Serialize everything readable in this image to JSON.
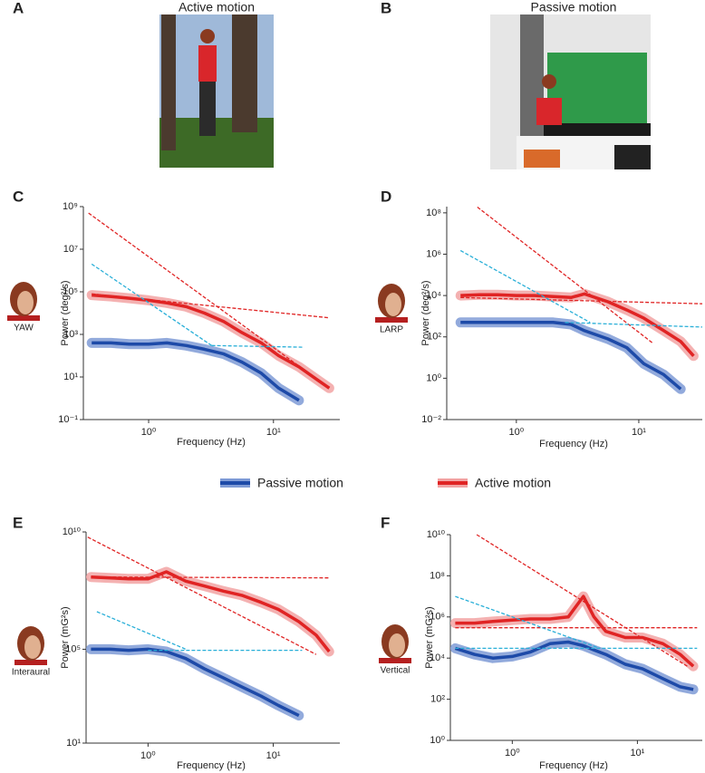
{
  "images": [
    {
      "letter": "A",
      "title": "Active motion"
    },
    {
      "letter": "B",
      "title": "Passive motion"
    }
  ],
  "chart_data": [
    {
      "type": "line",
      "panel": "C",
      "icon_label": "YAW",
      "x_label": "Frequency (Hz)",
      "y_label": "Power (deg²/s)",
      "xscale": "log",
      "yscale": "log",
      "xlim": [
        0.3,
        34
      ],
      "ylim": [
        0.1,
        1000000000
      ],
      "xticks": [
        {
          "value": 1,
          "label": "10⁰"
        },
        {
          "value": 10,
          "label": "10¹"
        }
      ],
      "yticks": [
        {
          "value": 0.1,
          "label": "10⁻¹"
        },
        {
          "value": 10,
          "label": "10¹"
        },
        {
          "value": 1000,
          "label": "10³"
        },
        {
          "value": 100000,
          "label": "10⁵"
        },
        {
          "value": 10000000,
          "label": "10⁷"
        },
        {
          "value": 1000000000,
          "label": "10⁹"
        }
      ],
      "x": [
        0.35,
        0.5,
        0.7,
        1,
        1.4,
        2,
        2.8,
        4,
        5.6,
        8,
        11,
        16,
        22,
        28
      ],
      "series": [
        {
          "name": "Passive motion",
          "color": "#1d4aa8",
          "band_color": "#7f9bd6",
          "values": [
            400,
            400,
            350,
            350,
            400,
            300,
            200,
            120,
            50,
            15,
            3,
            0.8,
            null,
            null
          ]
        },
        {
          "name": "Active motion",
          "color": "#e02424",
          "band_color": "#f2a3a3",
          "values": [
            70000,
            60000,
            50000,
            40000,
            30000,
            20000,
            10000,
            4000,
            1200,
            400,
            100,
            30,
            8,
            3
          ]
        }
      ],
      "fits": [
        {
          "color": "#e02424",
          "x": [
            0.33,
            28
          ],
          "values": [
            500000000,
            3
          ]
        },
        {
          "color": "#e02424",
          "x": [
            0.35,
            28
          ],
          "values": [
            80000,
            6000
          ]
        },
        {
          "color": "#29afd8",
          "x": [
            0.35,
            3.2
          ],
          "values": [
            2000000,
            300
          ]
        },
        {
          "color": "#29afd8",
          "x": [
            3.2,
            17
          ],
          "values": [
            300,
            250
          ]
        }
      ]
    },
    {
      "type": "line",
      "panel": "D",
      "icon_label": "LARP",
      "x_label": "Frequency (Hz)",
      "y_label": "Power (deg²/s)",
      "xscale": "log",
      "yscale": "log",
      "xlim": [
        0.27,
        33
      ],
      "ylim": [
        0.01,
        200000000
      ],
      "xticks": [
        {
          "value": 1,
          "label": "10⁰"
        },
        {
          "value": 10,
          "label": "10¹"
        }
      ],
      "yticks": [
        {
          "value": 0.01,
          "label": "10⁻²"
        },
        {
          "value": 1,
          "label": "10⁰"
        },
        {
          "value": 100,
          "label": "10²"
        },
        {
          "value": 10000,
          "label": "10⁴"
        },
        {
          "value": 1000000,
          "label": "10⁶"
        },
        {
          "value": 100000000,
          "label": "10⁸"
        }
      ],
      "x": [
        0.35,
        0.5,
        0.7,
        1,
        1.4,
        2,
        2.8,
        3.6,
        5.6,
        8,
        11,
        16,
        22,
        28
      ],
      "series": [
        {
          "name": "Passive motion",
          "color": "#1d4aa8",
          "band_color": "#7f9bd6",
          "values": [
            500,
            500,
            500,
            500,
            500,
            500,
            400,
            200,
            80,
            30,
            5,
            1.5,
            0.3,
            null
          ]
        },
        {
          "name": "Active motion",
          "color": "#e02424",
          "band_color": "#f2a3a3",
          "values": [
            10000,
            11000,
            11000,
            10000,
            10000,
            9000,
            8000,
            12000,
            5000,
            2000,
            800,
            200,
            60,
            12
          ]
        }
      ],
      "fits": [
        {
          "color": "#e02424",
          "x": [
            0.48,
            13
          ],
          "values": [
            190000000,
            50
          ]
        },
        {
          "color": "#e02424",
          "x": [
            0.35,
            33
          ],
          "values": [
            8000,
            4000
          ]
        },
        {
          "color": "#29afd8",
          "x": [
            0.35,
            4
          ],
          "values": [
            1500000,
            500
          ]
        },
        {
          "color": "#29afd8",
          "x": [
            2.5,
            33
          ],
          "values": [
            500,
            300
          ]
        }
      ]
    },
    {
      "type": "line",
      "panel": "E",
      "icon_label": "Interaural",
      "x_label": "Frequency (Hz)",
      "y_label": "Power (mG²s)",
      "xscale": "log",
      "yscale": "log",
      "xlim": [
        0.32,
        34
      ],
      "ylim": [
        10,
        10000000000
      ],
      "xticks": [
        {
          "value": 1,
          "label": "10⁰"
        },
        {
          "value": 10,
          "label": "10¹"
        }
      ],
      "yticks": [
        {
          "value": 10,
          "label": "10¹"
        },
        {
          "value": 100000,
          "label": "10⁵"
        },
        {
          "value": 10000000000,
          "label": "10¹⁰"
        }
      ],
      "x": [
        0.35,
        0.5,
        0.7,
        1,
        1.4,
        2,
        2.8,
        4,
        5.6,
        8,
        11,
        16,
        22,
        28
      ],
      "series": [
        {
          "name": "Passive motion",
          "color": "#1d4aa8",
          "band_color": "#7f9bd6",
          "values": [
            100000,
            100000,
            90000,
            100000,
            80000,
            40000,
            15000,
            6000,
            2500,
            1000,
            400,
            150,
            null,
            null
          ]
        },
        {
          "name": "Active motion",
          "color": "#e02424",
          "band_color": "#f2a3a3",
          "values": [
            120000000,
            110000000,
            100000000,
            100000000,
            200000000,
            80000000,
            50000000,
            30000000,
            20000000,
            10000000,
            5000000,
            1500000,
            400000,
            80000
          ]
        },
        {
          "name": null,
          "color": null,
          "band_color": null,
          "values": null
        }
      ],
      "fits": [
        {
          "color": "#e02424",
          "x": [
            0.33,
            22
          ],
          "values": [
            6000000000,
            60000
          ]
        },
        {
          "color": "#e02424",
          "x": [
            0.35,
            28
          ],
          "values": [
            120000000,
            110000000
          ]
        },
        {
          "color": "#29afd8",
          "x": [
            0.39,
            2
          ],
          "values": [
            4000000,
            100000
          ]
        },
        {
          "color": "#29afd8",
          "x": [
            1,
            17
          ],
          "values": [
            90000,
            90000
          ]
        }
      ]
    },
    {
      "type": "line",
      "panel": "F",
      "icon_label": "Vertical",
      "x_label": "Frequency (Hz)",
      "y_label": "Power (mG²s)",
      "xscale": "log",
      "yscale": "log",
      "xlim": [
        0.32,
        33
      ],
      "ylim": [
        1,
        10000000000
      ],
      "xticks": [
        {
          "value": 1,
          "label": "10⁰"
        },
        {
          "value": 10,
          "label": "10¹"
        }
      ],
      "yticks": [
        {
          "value": 1,
          "label": "10⁰"
        },
        {
          "value": 100,
          "label": "10²"
        },
        {
          "value": 10000,
          "label": "10⁴"
        },
        {
          "value": 1000000,
          "label": "10⁶"
        },
        {
          "value": 100000000,
          "label": "10⁸"
        },
        {
          "value": 10000000000,
          "label": "10¹⁰"
        }
      ],
      "x": [
        0.35,
        0.5,
        0.7,
        1,
        1.4,
        2,
        2.8,
        3.7,
        4.5,
        5.6,
        8,
        11,
        16,
        22,
        28
      ],
      "series": [
        {
          "name": "Passive motion",
          "color": "#1d4aa8",
          "band_color": "#7f9bd6",
          "values": [
            30000,
            15000,
            10000,
            12000,
            20000,
            50000,
            60000,
            40000,
            25000,
            15000,
            5000,
            3000,
            1000,
            400,
            300
          ]
        },
        {
          "name": "Active motion",
          "color": "#e02424",
          "band_color": "#f2a3a3",
          "values": [
            500000,
            500000,
            600000,
            700000,
            800000,
            800000,
            1000000,
            10000000,
            1000000,
            200000,
            100000,
            100000,
            50000,
            15000,
            4000
          ]
        }
      ],
      "fits": [
        {
          "color": "#e02424",
          "x": [
            0.52,
            25
          ],
          "values": [
            10000000000,
            4000
          ]
        },
        {
          "color": "#e02424",
          "x": [
            0.35,
            30
          ],
          "values": [
            300000,
            300000
          ]
        },
        {
          "color": "#29afd8",
          "x": [
            0.35,
            5
          ],
          "values": [
            10000000,
            30000
          ]
        },
        {
          "color": "#29afd8",
          "x": [
            0.35,
            30
          ],
          "values": [
            30000,
            30000
          ]
        }
      ]
    }
  ]
}
